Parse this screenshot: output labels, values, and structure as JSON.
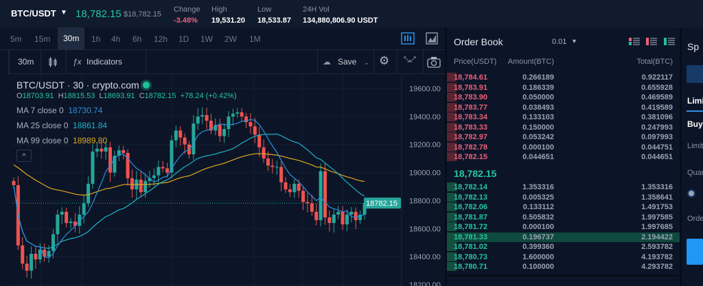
{
  "header": {
    "pair": "BTC/USDT",
    "last_price": "18,782.15",
    "usd_price": "$18,782.15",
    "stats": [
      {
        "label": "Change",
        "value": "-3.48%"
      },
      {
        "label": "High",
        "value": "19,531.20"
      },
      {
        "label": "Low",
        "value": "18,533.87"
      },
      {
        "label": "24H Vol",
        "value": "134,880,806.90 USDT"
      }
    ]
  },
  "timeframes": [
    "5m",
    "15m",
    "30m",
    "1h",
    "4h",
    "6h",
    "12h",
    "1D",
    "1W",
    "2W",
    "1M"
  ],
  "selected_timeframe": "30m",
  "toolbar": {
    "interval": "30m",
    "indicators": "Indicators",
    "save": "Save"
  },
  "legend": {
    "title": "BTC/USDT · 30 · crypto.com",
    "ohlc": [
      {
        "k": "O",
        "v": "18703.91"
      },
      {
        "k": "H",
        "v": "18815.53"
      },
      {
        "k": "L",
        "v": "18693.91"
      },
      {
        "k": "C",
        "v": "18782.15"
      }
    ],
    "change": "+78.24 (+0.42%)",
    "ma": [
      {
        "label": "MA 7 close 0",
        "value": "18730.74",
        "color": "#2f8fe0"
      },
      {
        "label": "MA 25 close 0",
        "value": "18861.84",
        "color": "#1fb3c8"
      },
      {
        "label": "MA 99 close 0",
        "value": "18989.80",
        "color": "#e0a91e"
      }
    ]
  },
  "chart_data": {
    "type": "candlestick",
    "ylim": [
      18200,
      19700
    ],
    "yticks": [
      "19600.00",
      "19400.00",
      "19200.00",
      "19000.00",
      "18800.00",
      "18600.00",
      "18400.00",
      "18200.00"
    ],
    "last_label": "18782.15",
    "up_color": "#26a69a",
    "down_color": "#ef5350",
    "closes": [
      18910,
      18480,
      18350,
      18300,
      18420,
      18380,
      18450,
      18400,
      18440,
      18560,
      18700,
      18720,
      18640,
      18650,
      18620,
      18700,
      18780,
      18920,
      19150,
      19170,
      19150,
      19180,
      19000,
      19120,
      19160,
      19140,
      18960,
      18880,
      18950,
      18860,
      18940,
      18960,
      18980,
      19040,
      19030,
      19000,
      19230,
      19300,
      19250,
      19200,
      19130,
      19350,
      19400,
      19410,
      19370,
      19300,
      19340,
      19260,
      19310,
      19400,
      19420,
      19430,
      19400,
      19360,
      19330,
      19270,
      19180,
      19100,
      19050,
      19040,
      19040,
      18930,
      18880,
      18860,
      18920,
      18870,
      18790,
      18780,
      18720,
      18660,
      19010,
      18680,
      18640,
      18700,
      18720,
      18630,
      18700,
      18720,
      18660,
      18700,
      18782
    ]
  },
  "orderbook": {
    "title": "Order Book",
    "precision": "0.01",
    "headers": [
      "Price(USDT)",
      "Amount(BTC)",
      "Total(BTC)"
    ],
    "asks": [
      [
        "18,784.61",
        "0.266189",
        "0.922117"
      ],
      [
        "18,783.91",
        "0.186339",
        "0.655928"
      ],
      [
        "18,783.90",
        "0.050000",
        "0.469589"
      ],
      [
        "18,783.77",
        "0.038493",
        "0.419589"
      ],
      [
        "18,783.34",
        "0.133103",
        "0.381096"
      ],
      [
        "18,783.33",
        "0.150000",
        "0.247993"
      ],
      [
        "18,782.97",
        "0.053242",
        "0.097993"
      ],
      [
        "18,782.78",
        "0.000100",
        "0.044751"
      ],
      [
        "18,782.15",
        "0.044651",
        "0.044651"
      ]
    ],
    "mid": "18,782.15",
    "bids": [
      [
        "18,782.14",
        "1.353316",
        "1.353316"
      ],
      [
        "18,782.13",
        "0.005325",
        "1.358641"
      ],
      [
        "18,782.06",
        "0.133112",
        "1.491753"
      ],
      [
        "18,781.87",
        "0.505832",
        "1.997585"
      ],
      [
        "18,781.72",
        "0.000100",
        "1.997685"
      ],
      [
        "18,781.33",
        "0.196737",
        "2.194422"
      ],
      [
        "18,781.02",
        "0.399360",
        "2.593782"
      ],
      [
        "18,780.73",
        "1.600000",
        "4.193782"
      ],
      [
        "18,780.71",
        "0.100000",
        "4.293782"
      ]
    ],
    "highlighted_bid": 5
  },
  "right_panel": {
    "title": "Sp",
    "tab": "Limi",
    "side": "Buy",
    "limit": "Limit",
    "quantity": "Quan",
    "order": "Orde"
  }
}
